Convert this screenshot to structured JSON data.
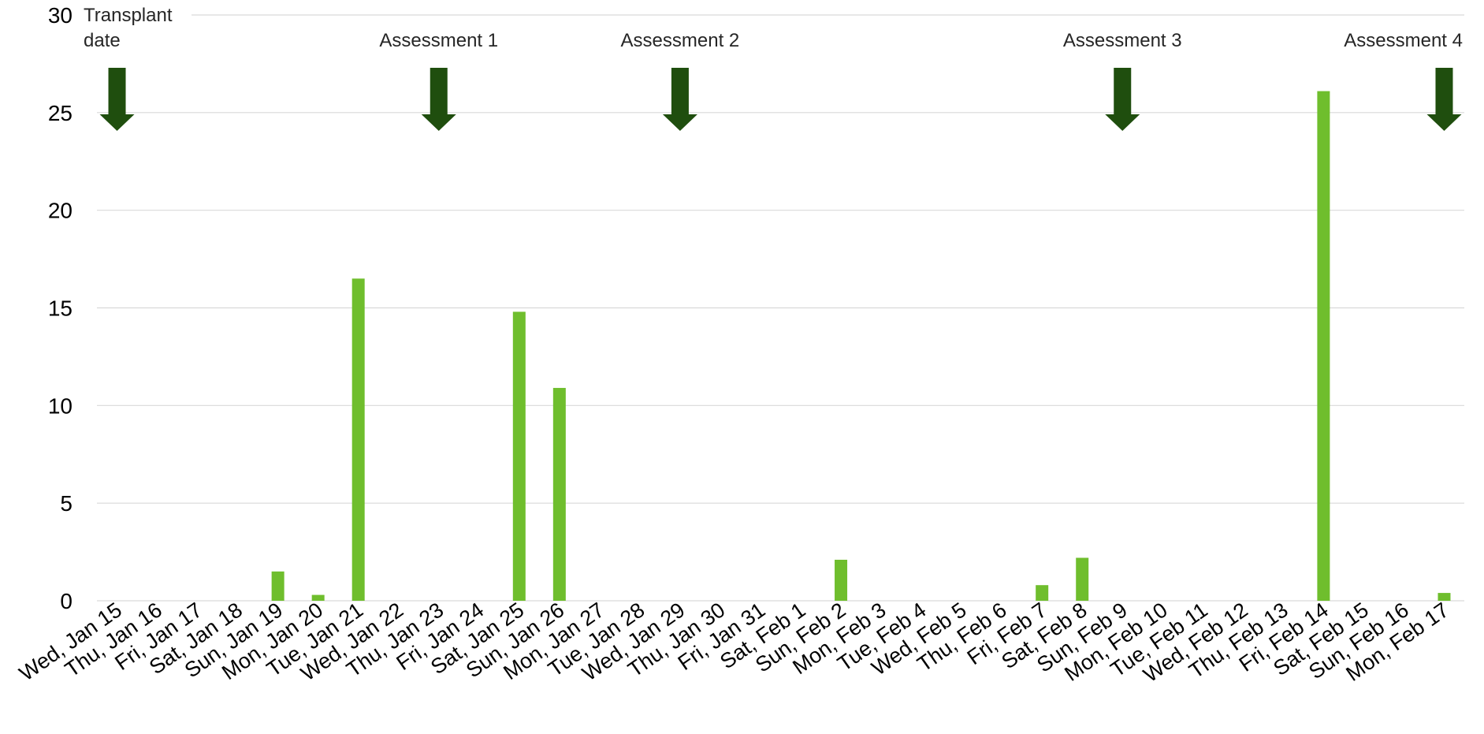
{
  "chart_data": {
    "type": "bar",
    "title": "",
    "xlabel": "",
    "ylabel": "",
    "ylim": [
      0,
      30
    ],
    "yticks": [
      0,
      5,
      10,
      15,
      20,
      25,
      30
    ],
    "grid": true,
    "legend": "none",
    "categories": [
      "Wed, Jan 15",
      "Thu, Jan 16",
      "Fri, Jan 17",
      "Sat, Jan 18",
      "Sun, Jan 19",
      "Mon, Jan 20",
      "Tue, Jan 21",
      "Wed, Jan 22",
      "Thu, Jan 23",
      "Fri, Jan 24",
      "Sat, Jan 25",
      "Sun, Jan 26",
      "Mon, Jan 27",
      "Tue, Jan 28",
      "Wed, Jan 29",
      "Thu, Jan 30",
      "Fri, Jan 31",
      "Sat, Feb 1",
      "Sun, Feb 2",
      "Mon, Feb 3",
      "Tue, Feb 4",
      "Wed, Feb 5",
      "Thu, Feb 6",
      "Fri, Feb 7",
      "Sat, Feb 8",
      "Sun, Feb 9",
      "Mon, Feb 10",
      "Tue, Feb 11",
      "Wed, Feb 12",
      "Thu, Feb 13",
      "Fri, Feb 14",
      "Sat, Feb 15",
      "Sun, Feb 16",
      "Mon, Feb 17"
    ],
    "values": [
      0,
      0,
      0,
      0,
      1.5,
      0.3,
      16.5,
      0,
      0,
      0,
      14.8,
      10.9,
      0,
      0,
      0,
      0,
      0,
      0,
      2.1,
      0,
      0,
      0,
      0,
      0.8,
      2.2,
      0,
      0,
      0,
      0,
      0,
      26.1,
      0,
      0,
      0.4
    ],
    "annotations": [
      {
        "category": "Wed, Jan 15",
        "lines": [
          "Transplant",
          "date"
        ]
      },
      {
        "category": "Thu, Jan 23",
        "lines": [
          "Assessment 1"
        ]
      },
      {
        "category": "Wed, Jan 29",
        "lines": [
          "Assessment 2"
        ]
      },
      {
        "category": "Sun, Feb 9",
        "lines": [
          "Assessment 3"
        ]
      },
      {
        "category": "Mon, Feb 17",
        "lines": [
          "Assessment 4"
        ]
      }
    ],
    "colors": {
      "bar": "#6fbe2d",
      "arrow": "#1f4e0e",
      "grid": "#d9d9d9"
    }
  }
}
